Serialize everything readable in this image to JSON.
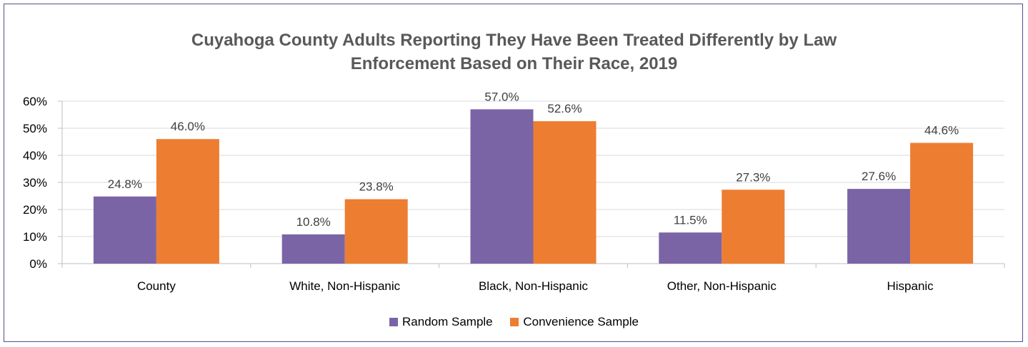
{
  "chart_data": {
    "type": "bar",
    "title_lines": [
      "Cuyahoga County Adults Reporting They Have Been Treated Differently by Law",
      "Enforcement Based on Their Race, 2019"
    ],
    "categories": [
      "County",
      "White, Non-Hispanic",
      "Black, Non-Hispanic",
      "Other, Non-Hispanic",
      "Hispanic"
    ],
    "series": [
      {
        "name": "Random Sample",
        "color": "#7a64a6",
        "values": [
          24.8,
          10.8,
          57.0,
          11.5,
          27.6
        ],
        "labels": [
          "24.8%",
          "10.8%",
          "57.0%",
          "11.5%",
          "27.6%"
        ]
      },
      {
        "name": "Convenience Sample",
        "color": "#ed7d31",
        "values": [
          46.0,
          23.8,
          52.6,
          27.3,
          44.6
        ],
        "labels": [
          "46.0%",
          "23.8%",
          "52.6%",
          "27.3%",
          "44.6%"
        ]
      }
    ],
    "yticks": [
      0,
      10,
      20,
      30,
      40,
      50,
      60
    ],
    "ytick_labels": [
      "0%",
      "10%",
      "20%",
      "30%",
      "40%",
      "50%",
      "60%"
    ],
    "ylim": [
      0,
      60
    ],
    "grid": true,
    "legend_position": "bottom"
  }
}
